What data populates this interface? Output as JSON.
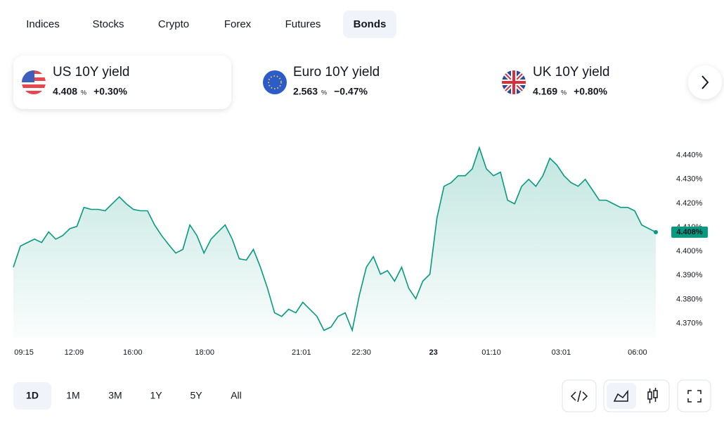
{
  "tabs": [
    "Indices",
    "Stocks",
    "Crypto",
    "Forex",
    "Futures",
    "Bonds"
  ],
  "active_tab": 5,
  "cards": [
    {
      "name": "US 10Y yield",
      "value": "4.408",
      "unit": "%",
      "change": "+0.30%"
    },
    {
      "name": "Euro 10Y yield",
      "value": "2.563",
      "unit": "%",
      "change": "−0.47%"
    },
    {
      "name": "UK 10Y yield",
      "value": "4.169",
      "unit": "%",
      "change": "+0.80%"
    }
  ],
  "chart_data": {
    "type": "line",
    "color": "#089981",
    "values": [
      4.3934,
      4.4022,
      4.4037,
      4.4051,
      4.4037,
      4.4081,
      4.4051,
      4.4066,
      4.4095,
      4.4104,
      4.4183,
      4.4175,
      4.4175,
      4.4169,
      4.4198,
      4.4227,
      4.4198,
      4.4175,
      4.4169,
      4.4169,
      4.411,
      4.4066,
      4.4028,
      4.3993,
      4.4008,
      4.411,
      4.4066,
      4.3993,
      4.4051,
      4.4081,
      4.411,
      4.4051,
      4.3969,
      4.3964,
      4.4008,
      4.3934,
      4.3846,
      4.3744,
      4.3729,
      4.3759,
      4.3744,
      4.3788,
      4.3759,
      4.3729,
      4.3671,
      4.3685,
      4.3729,
      4.3744,
      4.3671,
      4.3817,
      4.3934,
      4.3978,
      4.3905,
      4.392,
      4.3876,
      4.3934,
      4.3846,
      4.3803,
      4.3876,
      4.3905,
      4.4139,
      4.4271,
      4.4286,
      4.4315,
      4.4315,
      4.4344,
      4.4432,
      4.4344,
      4.4315,
      4.433,
      4.4213,
      4.4198,
      4.4271,
      4.43,
      4.4271,
      4.4315,
      4.4388,
      4.4359,
      4.4315,
      4.4286,
      4.4271,
      4.43,
      4.4257,
      4.4213,
      4.4213,
      4.4198,
      4.4183,
      4.4183,
      4.4169,
      4.411,
      4.4095,
      4.408
    ],
    "last_label": "4.408%",
    "xlim": [
      0,
      91
    ],
    "xticks": [
      {
        "value": 1.5,
        "label": "09:15"
      },
      {
        "value": 8.6,
        "label": "12:09"
      },
      {
        "value": 16.9,
        "label": "16:00"
      },
      {
        "value": 27.1,
        "label": "18:00"
      },
      {
        "value": 40.8,
        "label": "21:01"
      },
      {
        "value": 49.3,
        "label": "22:30"
      },
      {
        "value": 59.5,
        "label": "23"
      },
      {
        "value": 67.7,
        "label": "01:10"
      },
      {
        "value": 77.6,
        "label": "03:01"
      },
      {
        "value": 88.4,
        "label": "06:00"
      }
    ],
    "ylim": [
      4.364,
      4.449
    ],
    "yticks": [
      {
        "value": 4.37,
        "label": "4.370%"
      },
      {
        "value": 4.38,
        "label": "4.380%"
      },
      {
        "value": 4.39,
        "label": "4.390%"
      },
      {
        "value": 4.4,
        "label": "4.400%"
      },
      {
        "value": 4.41,
        "label": "4.410%"
      },
      {
        "value": 4.42,
        "label": "4.420%"
      },
      {
        "value": 4.43,
        "label": "4.430%"
      },
      {
        "value": 4.44,
        "label": "4.440%"
      }
    ]
  },
  "ranges": [
    "1D",
    "1M",
    "3M",
    "1Y",
    "5Y",
    "All"
  ],
  "active_range": 0
}
